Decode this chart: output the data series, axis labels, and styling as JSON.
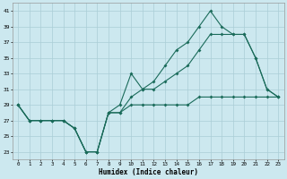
{
  "xlabel": "Humidex (Indice chaleur)",
  "x": [
    0,
    1,
    2,
    3,
    4,
    5,
    6,
    7,
    8,
    9,
    10,
    11,
    12,
    13,
    14,
    15,
    16,
    17,
    18,
    19,
    20,
    21,
    22,
    23
  ],
  "line1": [
    29,
    27,
    27,
    27,
    27,
    26,
    23,
    23,
    28,
    29,
    33,
    31,
    32,
    34,
    36,
    37,
    39,
    41,
    39,
    38,
    38,
    35,
    31,
    30
  ],
  "line2": [
    29,
    27,
    27,
    27,
    27,
    26,
    23,
    23,
    28,
    28,
    30,
    31,
    31,
    32,
    33,
    34,
    36,
    38,
    38,
    38,
    38,
    35,
    31,
    30
  ],
  "line3": [
    29,
    27,
    27,
    27,
    27,
    26,
    23,
    23,
    28,
    28,
    29,
    29,
    29,
    29,
    29,
    29,
    30,
    30,
    30,
    30,
    30,
    30,
    30,
    30
  ],
  "line_color": "#1a6b5a",
  "bg_color": "#cce8ef",
  "grid_color": "#aacdd6",
  "ylim": [
    22,
    42
  ],
  "xlim": [
    -0.5,
    23.5
  ],
  "yticks": [
    23,
    25,
    27,
    29,
    31,
    33,
    35,
    37,
    39,
    41
  ],
  "xticks": [
    0,
    1,
    2,
    3,
    4,
    5,
    6,
    7,
    8,
    9,
    10,
    11,
    12,
    13,
    14,
    15,
    16,
    17,
    18,
    19,
    20,
    21,
    22,
    23
  ]
}
